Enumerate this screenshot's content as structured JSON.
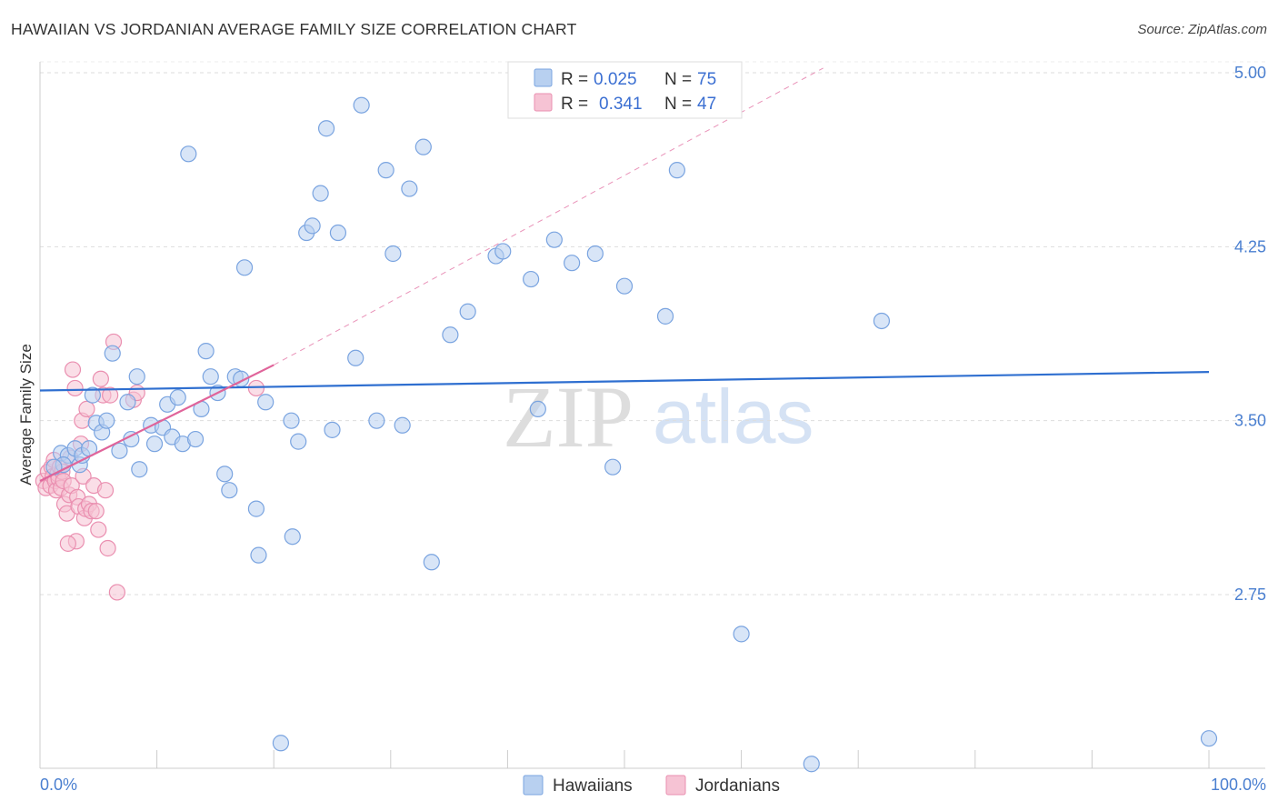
{
  "header": {
    "title": "HAWAIIAN VS JORDANIAN AVERAGE FAMILY SIZE CORRELATION CHART",
    "source": "Source: ZipAtlas.com"
  },
  "watermark": {
    "zip": "ZIP",
    "atlas": "atlas"
  },
  "colors": {
    "hawaiian_fill": "#b8d0f0",
    "hawaiian_stroke": "#7aa4e0",
    "hawaiian_line": "#2f6fd0",
    "jordanian_fill": "#f6c3d4",
    "jordanian_stroke": "#ea8fb0",
    "jordanian_line": "#e0649a",
    "grid": "#dddddd",
    "tick_label": "#4a7fd0"
  },
  "legend": {
    "rows": [
      {
        "r_label": "R =",
        "r_value": "0.025",
        "n_label": "N =",
        "n_value": "75"
      },
      {
        "r_label": "R =",
        "r_value": "0.341",
        "n_label": "N =",
        "n_value": "47"
      }
    ]
  },
  "bottom_legend": {
    "hawaiians": "Hawaiians",
    "jordanians": "Jordanians"
  },
  "chart_data": {
    "type": "scatter",
    "title": "HAWAIIAN VS JORDANIAN AVERAGE FAMILY SIZE CORRELATION CHART",
    "xlabel": "",
    "ylabel": "Average Family Size",
    "xlim": [
      0,
      100
    ],
    "ylim": [
      2.05,
      5.1
    ],
    "x_tick_labels": [
      "0.0%",
      "100.0%"
    ],
    "y_ticks": [
      2.75,
      3.5,
      4.25,
      5.0
    ],
    "y_tick_labels": [
      "2.75",
      "3.50",
      "4.25",
      "5.00"
    ],
    "grid": true,
    "series": [
      {
        "name": "Hawaiians",
        "r": 0.025,
        "n": 75,
        "trend": {
          "x": [
            0,
            100
          ],
          "y": [
            3.63,
            3.71
          ]
        },
        "points": [
          [
            1.8,
            3.36
          ],
          [
            2.4,
            3.35
          ],
          [
            3.0,
            3.38
          ],
          [
            3.4,
            3.31
          ],
          [
            3.6,
            3.35
          ],
          [
            2.0,
            3.31
          ],
          [
            4.2,
            3.38
          ],
          [
            4.5,
            3.61
          ],
          [
            4.8,
            3.49
          ],
          [
            5.3,
            3.45
          ],
          [
            5.7,
            3.5
          ],
          [
            6.2,
            3.79
          ],
          [
            6.8,
            3.37
          ],
          [
            7.5,
            3.58
          ],
          [
            7.8,
            3.42
          ],
          [
            8.3,
            3.69
          ],
          [
            8.5,
            3.29
          ],
          [
            9.5,
            3.48
          ],
          [
            9.8,
            3.4
          ],
          [
            10.5,
            3.47
          ],
          [
            10.9,
            3.57
          ],
          [
            11.3,
            3.43
          ],
          [
            11.8,
            3.6
          ],
          [
            12.2,
            3.4
          ],
          [
            12.7,
            4.65
          ],
          [
            13.3,
            3.42
          ],
          [
            13.8,
            3.55
          ],
          [
            14.2,
            3.8
          ],
          [
            14.6,
            3.69
          ],
          [
            15.2,
            3.62
          ],
          [
            15.8,
            3.27
          ],
          [
            16.2,
            3.2
          ],
          [
            16.7,
            3.69
          ],
          [
            17.2,
            3.68
          ],
          [
            17.5,
            4.16
          ],
          [
            18.5,
            3.12
          ],
          [
            18.7,
            2.92
          ],
          [
            19.3,
            3.58
          ],
          [
            20.6,
            2.11
          ],
          [
            21.5,
            3.5
          ],
          [
            21.6,
            3.0
          ],
          [
            22.1,
            3.41
          ],
          [
            22.8,
            4.31
          ],
          [
            23.3,
            4.34
          ],
          [
            24.0,
            4.48
          ],
          [
            24.5,
            4.76
          ],
          [
            25.0,
            3.46
          ],
          [
            25.5,
            4.31
          ],
          [
            27.0,
            3.77
          ],
          [
            27.5,
            4.86
          ],
          [
            28.8,
            3.5
          ],
          [
            29.6,
            4.58
          ],
          [
            30.2,
            4.22
          ],
          [
            31.0,
            3.48
          ],
          [
            31.6,
            4.5
          ],
          [
            32.8,
            4.68
          ],
          [
            33.5,
            2.89
          ],
          [
            35.1,
            3.87
          ],
          [
            36.6,
            3.97
          ],
          [
            39.0,
            4.21
          ],
          [
            39.6,
            4.23
          ],
          [
            42.0,
            4.11
          ],
          [
            42.6,
            3.55
          ],
          [
            44.0,
            4.28
          ],
          [
            45.5,
            4.18
          ],
          [
            47.5,
            4.22
          ],
          [
            49.0,
            3.3
          ],
          [
            50.0,
            4.08
          ],
          [
            53.5,
            3.95
          ],
          [
            54.5,
            4.58
          ],
          [
            60.0,
            2.58
          ],
          [
            66.0,
            2.02
          ],
          [
            72.0,
            3.93
          ],
          [
            100.0,
            2.13
          ],
          [
            1.2,
            3.3
          ]
        ]
      },
      {
        "name": "Jordanians",
        "r": 0.341,
        "n": 47,
        "trend": {
          "x": [
            0,
            20
          ],
          "y": [
            3.24,
            3.74
          ]
        },
        "trend_dashed_extension": {
          "x": [
            20,
            67
          ],
          "y": [
            3.74,
            5.02
          ]
        },
        "points": [
          [
            0.3,
            3.24
          ],
          [
            0.5,
            3.21
          ],
          [
            0.7,
            3.28
          ],
          [
            0.9,
            3.22
          ],
          [
            1.0,
            3.3
          ],
          [
            1.1,
            3.26
          ],
          [
            1.2,
            3.33
          ],
          [
            1.3,
            3.24
          ],
          [
            1.4,
            3.2
          ],
          [
            1.5,
            3.27
          ],
          [
            1.6,
            3.25
          ],
          [
            1.7,
            3.3
          ],
          [
            1.8,
            3.21
          ],
          [
            1.9,
            3.28
          ],
          [
            2.0,
            3.24
          ],
          [
            2.1,
            3.14
          ],
          [
            2.3,
            3.1
          ],
          [
            2.5,
            3.18
          ],
          [
            2.6,
            3.34
          ],
          [
            2.7,
            3.22
          ],
          [
            2.8,
            3.72
          ],
          [
            3.0,
            3.64
          ],
          [
            3.1,
            2.98
          ],
          [
            3.2,
            3.17
          ],
          [
            3.3,
            3.13
          ],
          [
            3.5,
            3.4
          ],
          [
            3.6,
            3.5
          ],
          [
            3.7,
            3.26
          ],
          [
            3.8,
            3.08
          ],
          [
            3.9,
            3.12
          ],
          [
            4.0,
            3.55
          ],
          [
            4.2,
            3.14
          ],
          [
            4.4,
            3.11
          ],
          [
            4.6,
            3.22
          ],
          [
            4.8,
            3.11
          ],
          [
            5.0,
            3.03
          ],
          [
            5.2,
            3.68
          ],
          [
            5.4,
            3.61
          ],
          [
            5.6,
            3.2
          ],
          [
            5.8,
            2.95
          ],
          [
            6.0,
            3.61
          ],
          [
            6.3,
            3.84
          ],
          [
            6.6,
            2.76
          ],
          [
            8.0,
            3.59
          ],
          [
            8.3,
            3.62
          ],
          [
            18.5,
            3.64
          ],
          [
            2.4,
            2.97
          ]
        ]
      }
    ]
  }
}
